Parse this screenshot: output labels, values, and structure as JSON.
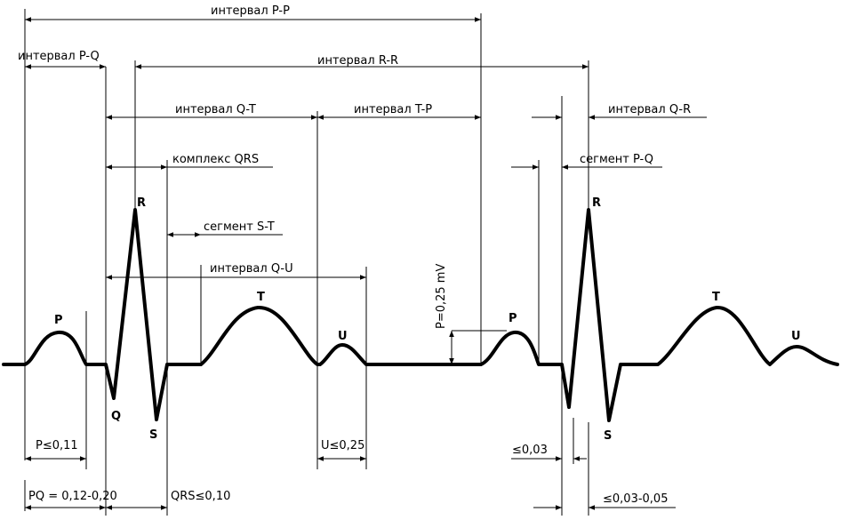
{
  "intervals": {
    "pp": "интервал  P-P",
    "pq": "интервал  P-Q",
    "rr": "интервал  R-R",
    "qt": "интервал  Q-T",
    "tp": "интервал  T-P",
    "qr": "интервал  Q-R",
    "qrs": "комплекс  QRS",
    "pq_seg": "сегмент  P-Q",
    "st_seg": "сегмент  S-T",
    "qu": "интервал  Q-U"
  },
  "waves": {
    "p1": "P",
    "q1": "Q",
    "r1": "R",
    "s1": "S",
    "t1": "T",
    "u1": "U",
    "p2": "P",
    "r2": "R",
    "s2": "S",
    "t2": "T",
    "u2": "U"
  },
  "measures": {
    "p_amp": "P=0,25 mV",
    "p_dur": "P≤0,11",
    "pq_dur": "PQ = 0,12-0,20",
    "qrs_dur": "QRS≤0,10",
    "u_dur": "U≤0,25",
    "q_dur": "≤0,03",
    "qr_dur": "≤0,03-0,05"
  }
}
